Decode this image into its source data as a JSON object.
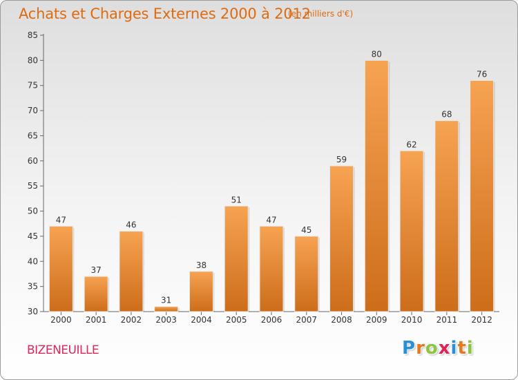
{
  "header": {
    "title": "Achats et Charges Externes 2000 à 2012",
    "unit": "(en milliers d'€)"
  },
  "footer": {
    "commune": "BIZENEUILLE",
    "logo": "Proxiti",
    "logo_letters": [
      {
        "ch": "P",
        "color": "#2a8fd6"
      },
      {
        "ch": "r",
        "color": "#e8781e"
      },
      {
        "ch": "o",
        "color": "#8cc63f"
      },
      {
        "ch": "x",
        "color": "#e0245a"
      },
      {
        "ch": "i",
        "color": "#2a8fd6"
      },
      {
        "ch": "t",
        "color": "#e8781e"
      },
      {
        "ch": "i",
        "color": "#8cc63f"
      }
    ]
  },
  "colors": {
    "title": "#e06a10",
    "bar_top": "#f6a352",
    "bar_bottom": "#cd6d1a",
    "commune": "#e0245a"
  },
  "chart_data": {
    "type": "bar",
    "title": "Achats et Charges Externes 2000 à 2012",
    "subtitle": "(en milliers d'€)",
    "xlabel": "",
    "ylabel": "",
    "categories": [
      "2000",
      "2001",
      "2002",
      "2003",
      "2004",
      "2005",
      "2006",
      "2007",
      "2008",
      "2009",
      "2010",
      "2011",
      "2012"
    ],
    "values": [
      47,
      37,
      46,
      31,
      38,
      51,
      47,
      45,
      59,
      80,
      62,
      68,
      76
    ],
    "ylim": [
      30,
      85
    ],
    "yticks": [
      30,
      35,
      40,
      45,
      50,
      55,
      60,
      65,
      70,
      75,
      80,
      85
    ],
    "grid": false,
    "legend": "none",
    "data_labels": true
  }
}
